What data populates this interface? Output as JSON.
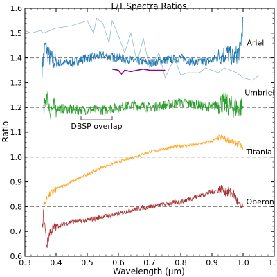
{
  "chart_data": {
    "type": "line",
    "title": "L/T Spectra Ratios",
    "xlabel": "Wavelength (μm)",
    "ylabel": "Ratio",
    "xlim": [
      0.3,
      1.1
    ],
    "ylim": [
      0.6,
      1.6
    ],
    "xticks": [
      0.3,
      0.4,
      0.5,
      0.6,
      0.7,
      0.8,
      0.9,
      1.0,
      1.1
    ],
    "yticks": [
      0.6,
      0.7,
      0.8,
      0.9,
      1.0,
      1.1,
      1.2,
      1.3,
      1.4,
      1.5,
      1.6
    ],
    "reference_lines": [
      1.4,
      1.2,
      1.0,
      0.8
    ],
    "series": [
      {
        "name": "Ariel",
        "color": "#1f77b4",
        "noise": 0.018,
        "x": [
          0.355,
          0.365,
          0.38,
          0.4,
          0.45,
          0.5,
          0.55,
          0.6,
          0.65,
          0.7,
          0.75,
          0.8,
          0.85,
          0.9,
          0.93,
          0.95,
          0.97,
          0.99,
          1.0
        ],
        "y": [
          1.36,
          1.45,
          1.4,
          1.38,
          1.38,
          1.4,
          1.41,
          1.4,
          1.39,
          1.38,
          1.39,
          1.4,
          1.38,
          1.39,
          1.41,
          1.42,
          1.4,
          1.43,
          1.55
        ]
      },
      {
        "name": "",
        "color": "#8cbcc6",
        "noise": 0.0,
        "x": [
          0.3,
          0.32,
          0.35,
          0.36,
          0.38,
          0.4,
          0.45,
          0.5,
          0.52,
          0.53,
          0.55,
          0.57,
          0.58,
          0.6,
          0.62,
          0.64,
          0.66,
          0.68,
          0.7,
          0.73,
          0.75,
          0.78,
          0.8,
          0.82,
          0.84,
          0.86,
          0.88,
          0.9,
          0.92,
          0.94,
          0.96,
          0.98,
          1.0,
          1.03,
          1.05
        ],
        "y": [
          1.51,
          1.5,
          1.51,
          1.5,
          1.51,
          1.52,
          1.53,
          1.55,
          1.5,
          1.56,
          1.54,
          1.46,
          1.55,
          1.49,
          1.42,
          1.5,
          1.38,
          1.48,
          1.36,
          1.42,
          1.32,
          1.4,
          1.33,
          1.34,
          1.34,
          1.34,
          1.36,
          1.35,
          1.34,
          1.36,
          1.35,
          1.34,
          1.32,
          1.31,
          1.33
        ]
      },
      {
        "name": "",
        "color": "#8b008b",
        "noise": 0.0,
        "x": [
          0.58,
          0.6,
          0.61,
          0.62,
          0.64,
          0.66,
          0.68,
          0.7,
          0.72,
          0.75
        ],
        "y": [
          1.355,
          1.35,
          1.335,
          1.35,
          1.345,
          1.35,
          1.355,
          1.35,
          1.35,
          1.35
        ]
      },
      {
        "name": "Umbriel",
        "color": "#2ca02c",
        "noise": 0.02,
        "x": [
          0.36,
          0.37,
          0.38,
          0.4,
          0.45,
          0.5,
          0.55,
          0.6,
          0.65,
          0.7,
          0.75,
          0.8,
          0.85,
          0.9,
          0.93,
          0.95,
          0.97,
          0.99,
          1.0
        ],
        "y": [
          1.17,
          1.26,
          1.19,
          1.2,
          1.19,
          1.19,
          1.19,
          1.2,
          1.21,
          1.2,
          1.21,
          1.22,
          1.21,
          1.2,
          1.22,
          1.21,
          1.2,
          1.2,
          1.2
        ]
      },
      {
        "name": "Titania",
        "color": "#ffa726",
        "noise": 0.006,
        "x": [
          0.36,
          0.37,
          0.38,
          0.4,
          0.45,
          0.5,
          0.55,
          0.6,
          0.65,
          0.7,
          0.75,
          0.8,
          0.85,
          0.9,
          0.93,
          0.95,
          0.97,
          0.99,
          1.0
        ],
        "y": [
          0.8,
          0.83,
          0.85,
          0.87,
          0.9,
          0.93,
          0.96,
          0.98,
          1.0,
          1.02,
          1.035,
          1.045,
          1.05,
          1.065,
          1.08,
          1.07,
          1.06,
          1.05,
          1.03
        ]
      },
      {
        "name": "Oberon",
        "color": "#a83232",
        "noise": 0.01,
        "x": [
          0.355,
          0.36,
          0.37,
          0.38,
          0.4,
          0.45,
          0.5,
          0.55,
          0.6,
          0.65,
          0.7,
          0.75,
          0.8,
          0.85,
          0.9,
          0.93,
          0.95,
          0.97,
          0.99,
          1.0
        ],
        "y": [
          0.7,
          0.78,
          0.64,
          0.7,
          0.72,
          0.74,
          0.745,
          0.76,
          0.77,
          0.79,
          0.8,
          0.81,
          0.82,
          0.84,
          0.86,
          0.87,
          0.86,
          0.85,
          0.8,
          0.79
        ]
      }
    ],
    "labels": [
      {
        "text": "Ariel",
        "x": 1.012,
        "y": 1.45
      },
      {
        "text": "Umbriel",
        "x": 1.005,
        "y": 1.25
      },
      {
        "text": "Titania",
        "x": 1.01,
        "y": 1.01
      },
      {
        "text": "Oberon",
        "x": 1.01,
        "y": 0.81
      }
    ],
    "annotation": {
      "text": "DBSP overlap",
      "x_start": 0.48,
      "x_end": 0.58,
      "y": 1.15
    }
  }
}
